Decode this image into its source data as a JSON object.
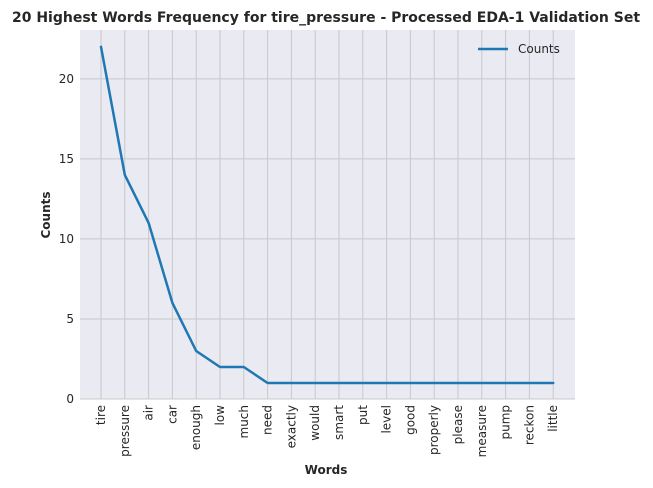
{
  "chart_data": {
    "type": "line",
    "title": "20 Highest Words Frequency for tire_pressure - Processed EDA-1 Validation Set",
    "xlabel": "Words",
    "ylabel": "Counts",
    "categories": [
      "tire",
      "pressure",
      "air",
      "car",
      "enough",
      "low",
      "much",
      "need",
      "exactly",
      "would",
      "smart",
      "put",
      "level",
      "good",
      "properly",
      "please",
      "measure",
      "pump",
      "reckon",
      "little"
    ],
    "series": [
      {
        "name": "Counts",
        "values": [
          22,
          14,
          11,
          6,
          3,
          2,
          2,
          1,
          1,
          1,
          1,
          1,
          1,
          1,
          1,
          1,
          1,
          1,
          1,
          1
        ],
        "color": "#1f77b4"
      }
    ],
    "ylim": [
      0,
      23.05
    ],
    "yticks": [
      0,
      5,
      10,
      15,
      20
    ],
    "grid": true,
    "legend": "top-right",
    "style": {
      "plot_bg": "#eaeaf2",
      "grid_color": "#c8c8c8"
    }
  }
}
